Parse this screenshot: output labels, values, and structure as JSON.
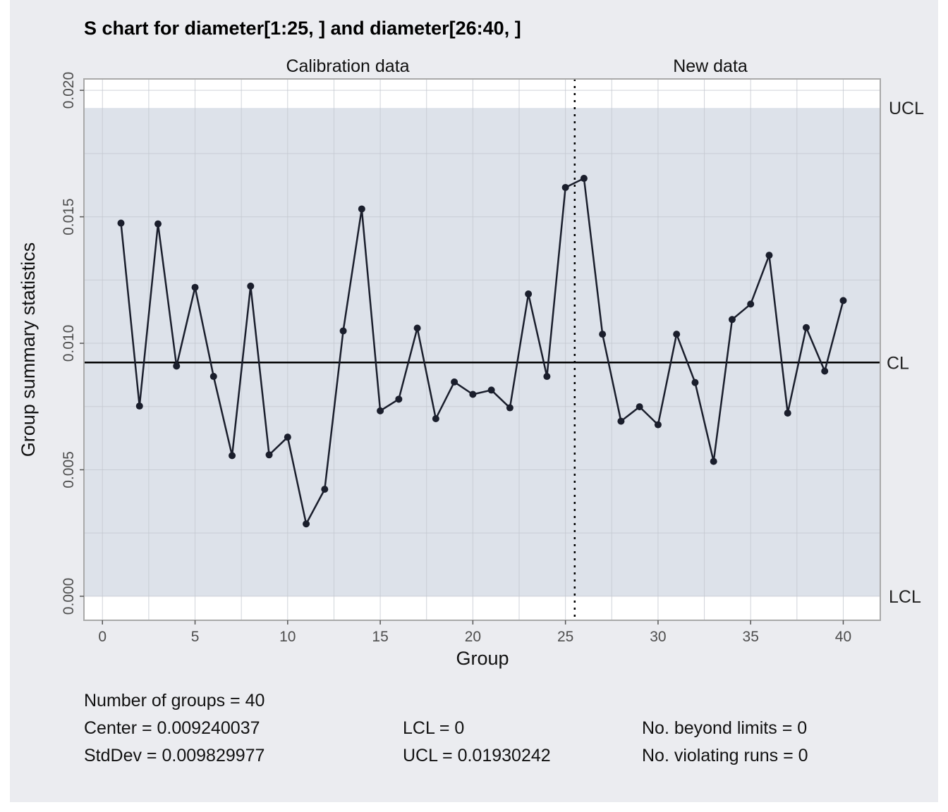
{
  "chart_data": {
    "type": "line",
    "title": "S chart for diameter[1:25, ] and diameter[26:40, ]",
    "xlabel": "Group",
    "ylabel": "Group summary statistics",
    "xlim": [
      -1,
      42
    ],
    "ylim": [
      -0.00095,
      0.02045
    ],
    "x_ticks": [
      0,
      5,
      10,
      15,
      20,
      25,
      30,
      35,
      40
    ],
    "y_ticks": [
      0.0,
      0.005,
      0.01,
      0.015,
      0.02
    ],
    "x_tick_labels": [
      "0",
      "5",
      "10",
      "15",
      "20",
      "25",
      "30",
      "35",
      "40"
    ],
    "y_tick_labels": [
      "0.000",
      "0.005",
      "0.010",
      "0.015",
      "0.020"
    ],
    "grid": true,
    "sections": [
      {
        "label": "Calibration data",
        "from": 1,
        "to": 25
      },
      {
        "label": "New data",
        "from": 26,
        "to": 40
      }
    ],
    "divider_at": 25.5,
    "control_limits": {
      "ucl": 0.01930242,
      "cl": 0.009240037,
      "lcl": 0,
      "ucl_label": "UCL",
      "cl_label": "CL",
      "lcl_label": "LCL"
    },
    "x": [
      1,
      2,
      3,
      4,
      5,
      6,
      7,
      8,
      9,
      10,
      11,
      12,
      13,
      14,
      15,
      16,
      17,
      18,
      19,
      20,
      21,
      22,
      23,
      24,
      25,
      26,
      27,
      28,
      29,
      30,
      31,
      32,
      33,
      34,
      35,
      36,
      37,
      38,
      39,
      40
    ],
    "values": [
      0.01475,
      0.00752,
      0.01472,
      0.0091,
      0.01221,
      0.00869,
      0.00556,
      0.01226,
      0.00559,
      0.00629,
      0.00286,
      0.00423,
      0.01049,
      0.01531,
      0.00733,
      0.00779,
      0.0106,
      0.00702,
      0.00847,
      0.00798,
      0.00815,
      0.00745,
      0.01195,
      0.00869,
      0.01616,
      0.01652,
      0.01036,
      0.00692,
      0.00749,
      0.00678,
      0.01036,
      0.00845,
      0.00533,
      0.01094,
      0.01155,
      0.01348,
      0.00724,
      0.01062,
      0.0089,
      0.01169
    ]
  },
  "colors": {
    "page_background": "#ffffff",
    "panel_background": "#ebecf0",
    "control_band": "#dde2ea",
    "plot_outside_band": "#ffffff",
    "grid": "#c4c8d0",
    "frame": "#a9a9a9",
    "series": "#1a1e2c",
    "center_line": "#000000"
  },
  "stats": {
    "groups": "Number of groups = 40",
    "center": "Center = 0.009240037",
    "stddev": "StdDev = 0.009829977",
    "lcl": "LCL = 0",
    "ucl": "UCL = 0.01930242",
    "beyond": "No. beyond limits = 0",
    "runs": "No. violating runs = 0"
  }
}
